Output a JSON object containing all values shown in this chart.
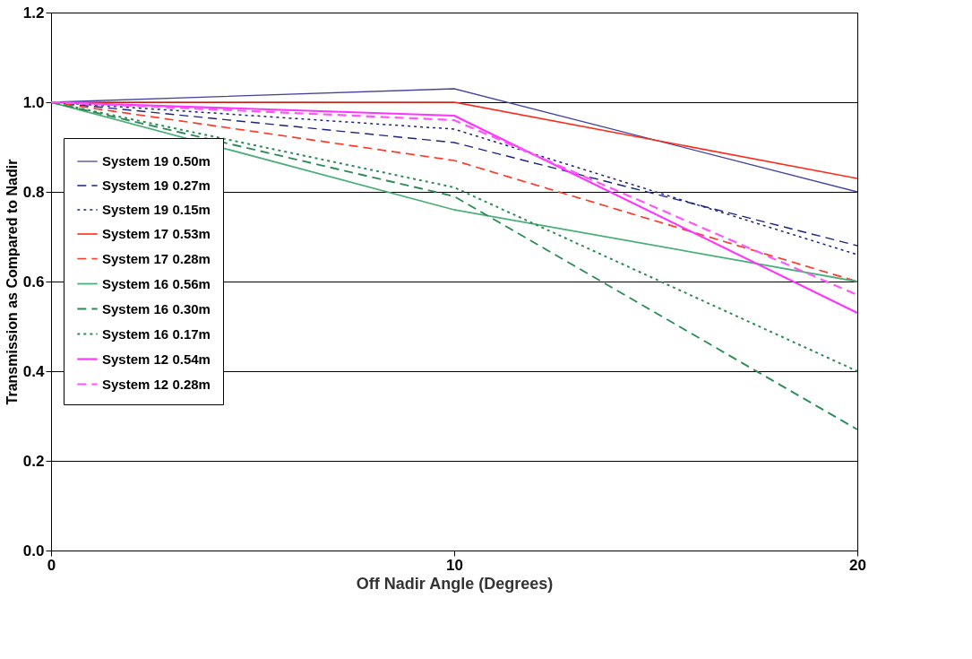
{
  "chart_data": {
    "type": "line",
    "xlabel": "Off Nadir Angle (Degrees)",
    "ylabel": "Transmission as Compared to Nadir",
    "x": [
      0,
      10,
      20
    ],
    "xlim": [
      0,
      20
    ],
    "xticks": [
      0,
      10,
      20
    ],
    "ylim": [
      0,
      1.2
    ],
    "yticks": [
      {
        "value": 0,
        "label": "0.0"
      },
      0.2,
      0.4,
      0.6,
      0.8,
      {
        "value": 1,
        "label": "1.0"
      },
      1.2
    ],
    "grid": "y",
    "legend": "left",
    "marker": "none",
    "series": [
      {
        "name": "System 19 0.50m",
        "color": "#4444a0",
        "line_style": "solid",
        "values": [
          1.0,
          1.03,
          0.8
        ]
      },
      {
        "name": "System 19 0.27m",
        "color": "#1a237e",
        "line_style": "dashed",
        "values": [
          1.0,
          0.91,
          0.68
        ]
      },
      {
        "name": "System 19 0.15m",
        "color": "#1a237e",
        "line_style": "dotted",
        "values": [
          1.0,
          0.94,
          0.66
        ]
      },
      {
        "name": "System 17 0.53m",
        "color": "#ff2a1a",
        "line_style": "solid",
        "values": [
          1.0,
          1.0,
          0.83
        ]
      },
      {
        "name": "System 17 0.28m",
        "color": "#ff3a2a",
        "line_style": "dashed",
        "values": [
          1.0,
          0.87,
          0.6
        ]
      },
      {
        "name": "System 16 0.56m",
        "color": "#4caf7a",
        "line_style": "solid",
        "values": [
          1.0,
          0.76,
          0.6
        ]
      },
      {
        "name": "System 16 0.30m",
        "color": "#2e8b57",
        "line_style": "dashed",
        "values": [
          1.0,
          0.79,
          0.27
        ]
      },
      {
        "name": "System 16 0.17m",
        "color": "#2e8b57",
        "line_style": "dotted",
        "values": [
          1.0,
          0.81,
          0.4
        ]
      },
      {
        "name": "System 12 0.54m",
        "color": "#ff33ff",
        "line_style": "solid",
        "values": [
          1.0,
          0.97,
          0.53
        ]
      },
      {
        "name": "System 12 0.28m",
        "color": "#ff55ff",
        "line_style": "dashed",
        "values": [
          1.0,
          0.96,
          0.57
        ]
      }
    ]
  }
}
